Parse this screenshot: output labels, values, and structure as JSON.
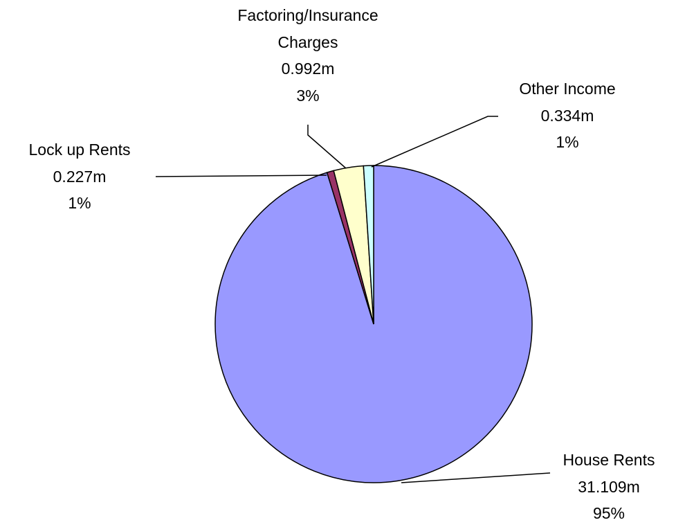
{
  "chart_data": {
    "type": "pie",
    "categories": [
      "House Rents",
      "Lock up Rents",
      "Factoring/Insurance Charges",
      "Other Income"
    ],
    "values": [
      31.109,
      0.227,
      0.992,
      0.334
    ],
    "value_labels": [
      "31.109m",
      "0.227m",
      "0.992m",
      "0.334m"
    ],
    "percents": [
      95,
      1,
      3,
      1
    ],
    "percent_labels": [
      "95%",
      "1%",
      "3%",
      "1%"
    ],
    "colors": [
      "#9999ff",
      "#993366",
      "#ffffcc",
      "#ccffff"
    ]
  }
}
